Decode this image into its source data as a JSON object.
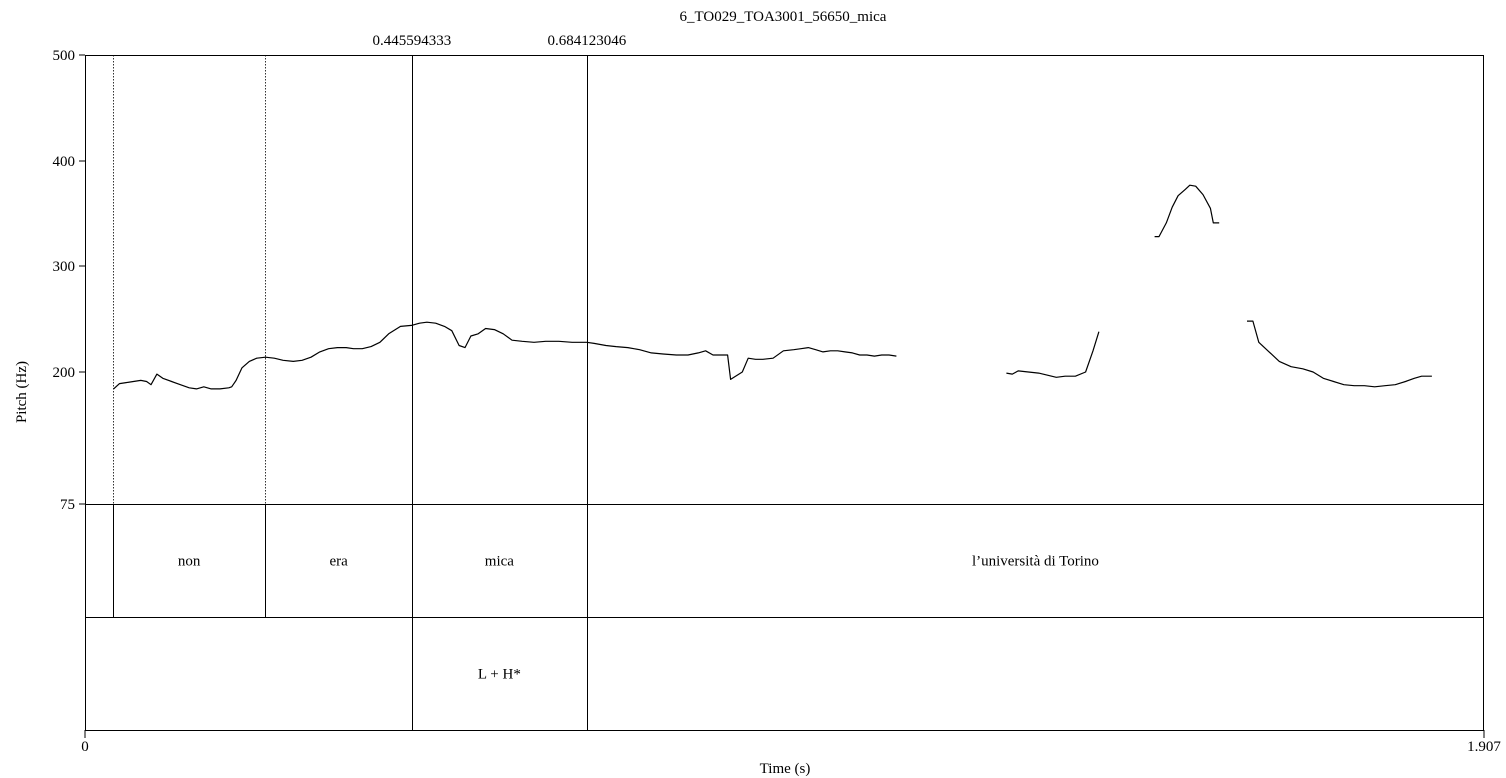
{
  "chart_data": {
    "type": "line",
    "title": "6_TO029_TOA3001_56650_mica",
    "xlabel": "Time (s)",
    "ylabel": "Pitch (Hz)",
    "xlim": [
      0,
      1.907
    ],
    "x_tick_labels": [
      "0",
      "1.907"
    ],
    "ylim": [
      75,
      500
    ],
    "y_ticks": [
      500,
      400,
      300,
      200,
      75
    ],
    "y_tick_labels": [
      "500",
      "400",
      "300",
      "200",
      "75"
    ],
    "cursor_labels": [
      "0.445594333",
      "0.684123046"
    ],
    "cursors": [
      0.445594333,
      0.684123046
    ],
    "word_boundaries": [
      0.038,
      0.246,
      0.445594333,
      0.684123046
    ],
    "words": [
      {
        "label": "non",
        "start": 0.038,
        "end": 0.246
      },
      {
        "label": "era",
        "start": 0.246,
        "end": 0.445594333
      },
      {
        "label": "mica",
        "start": 0.445594333,
        "end": 0.684123046
      },
      {
        "label": "l’università di Torino",
        "start": 0.684123046,
        "end": 1.907
      }
    ],
    "tones": [
      {
        "label": "L + H*",
        "start": 0.445594333,
        "end": 0.684123046
      }
    ],
    "series": [
      {
        "segments": [
          [
            [
              0.039,
              184
            ],
            [
              0.047,
              189
            ],
            [
              0.056,
              190
            ],
            [
              0.066,
              191
            ],
            [
              0.076,
              192
            ],
            [
              0.084,
              191
            ],
            [
              0.09,
              188
            ],
            [
              0.098,
              198
            ],
            [
              0.106,
              194
            ],
            [
              0.118,
              191
            ],
            [
              0.13,
              188
            ],
            [
              0.142,
              185
            ],
            [
              0.152,
              184
            ],
            [
              0.162,
              186
            ],
            [
              0.172,
              184
            ],
            [
              0.184,
              184
            ],
            [
              0.196,
              185
            ],
            [
              0.2,
              186
            ],
            [
              0.206,
              192
            ],
            [
              0.214,
              204
            ],
            [
              0.224,
              210
            ],
            [
              0.234,
              213
            ],
            [
              0.246,
              214
            ],
            [
              0.258,
              213
            ],
            [
              0.27,
              211
            ],
            [
              0.284,
              210
            ],
            [
              0.296,
              211
            ],
            [
              0.308,
              214
            ],
            [
              0.32,
              219
            ],
            [
              0.332,
              222
            ],
            [
              0.344,
              223
            ],
            [
              0.356,
              223
            ],
            [
              0.366,
              222
            ],
            [
              0.378,
              222
            ],
            [
              0.39,
              224
            ],
            [
              0.402,
              228
            ],
            [
              0.414,
              236
            ],
            [
              0.43,
              243
            ],
            [
              0.445,
              244
            ],
            [
              0.456,
              246
            ],
            [
              0.466,
              247
            ],
            [
              0.478,
              246
            ],
            [
              0.49,
              243
            ],
            [
              0.5,
              239
            ],
            [
              0.51,
              225
            ],
            [
              0.518,
              223
            ],
            [
              0.526,
              234
            ],
            [
              0.536,
              236
            ],
            [
              0.546,
              241
            ],
            [
              0.558,
              240
            ],
            [
              0.57,
              236
            ],
            [
              0.582,
              230
            ],
            [
              0.596,
              229
            ],
            [
              0.612,
              228
            ],
            [
              0.628,
              229
            ],
            [
              0.646,
              229
            ],
            [
              0.664,
              228
            ],
            [
              0.684,
              228
            ],
            [
              0.694,
              227
            ],
            [
              0.71,
              225
            ],
            [
              0.724,
              224
            ],
            [
              0.74,
              223
            ],
            [
              0.756,
              221
            ],
            [
              0.772,
              218
            ],
            [
              0.788,
              217
            ],
            [
              0.806,
              216
            ],
            [
              0.822,
              216
            ],
            [
              0.836,
              218
            ],
            [
              0.846,
              220
            ],
            [
              0.856,
              216
            ],
            [
              0.866,
              216
            ],
            [
              0.876,
              216
            ],
            [
              0.88,
              193
            ],
            [
              0.896,
              200
            ],
            [
              0.904,
              213
            ],
            [
              0.914,
              212
            ],
            [
              0.924,
              212
            ],
            [
              0.938,
              213
            ],
            [
              0.952,
              220
            ],
            [
              0.966,
              221
            ],
            [
              0.976,
              222
            ],
            [
              0.986,
              223
            ],
            [
              0.996,
              221
            ],
            [
              1.006,
              219
            ],
            [
              1.016,
              220
            ],
            [
              1.026,
              220
            ],
            [
              1.036,
              219
            ],
            [
              1.046,
              218
            ],
            [
              1.056,
              216
            ],
            [
              1.066,
              216
            ],
            [
              1.076,
              215
            ],
            [
              1.086,
              216
            ],
            [
              1.096,
              216
            ],
            [
              1.106,
              215
            ]
          ],
          [
            [
              1.256,
              199
            ],
            [
              1.264,
              198
            ],
            [
              1.272,
              201
            ],
            [
              1.286,
              200
            ],
            [
              1.3,
              199
            ],
            [
              1.312,
              197
            ],
            [
              1.324,
              195
            ],
            [
              1.336,
              196
            ],
            [
              1.35,
              196
            ],
            [
              1.364,
              200
            ],
            [
              1.374,
              220
            ],
            [
              1.382,
              238
            ]
          ],
          [
            [
              1.458,
              328
            ],
            [
              1.464,
              328
            ],
            [
              1.474,
              341
            ],
            [
              1.482,
              356
            ],
            [
              1.49,
              367
            ],
            [
              1.5,
              373
            ],
            [
              1.506,
              377
            ],
            [
              1.514,
              376
            ],
            [
              1.524,
              368
            ],
            [
              1.534,
              355
            ],
            [
              1.538,
              341
            ],
            [
              1.546,
              341
            ]
          ],
          [
            [
              1.584,
              248
            ],
            [
              1.592,
              248
            ],
            [
              1.6,
              228
            ],
            [
              1.614,
              219
            ],
            [
              1.628,
              210
            ],
            [
              1.644,
              205
            ],
            [
              1.66,
              203
            ],
            [
              1.674,
              200
            ],
            [
              1.688,
              194
            ],
            [
              1.702,
              191
            ],
            [
              1.716,
              188
            ],
            [
              1.73,
              187
            ],
            [
              1.744,
              187
            ],
            [
              1.758,
              186
            ],
            [
              1.772,
              187
            ],
            [
              1.786,
              188
            ],
            [
              1.8,
              191
            ],
            [
              1.812,
              194
            ],
            [
              1.822,
              196
            ],
            [
              1.836,
              196
            ]
          ]
        ]
      }
    ]
  }
}
